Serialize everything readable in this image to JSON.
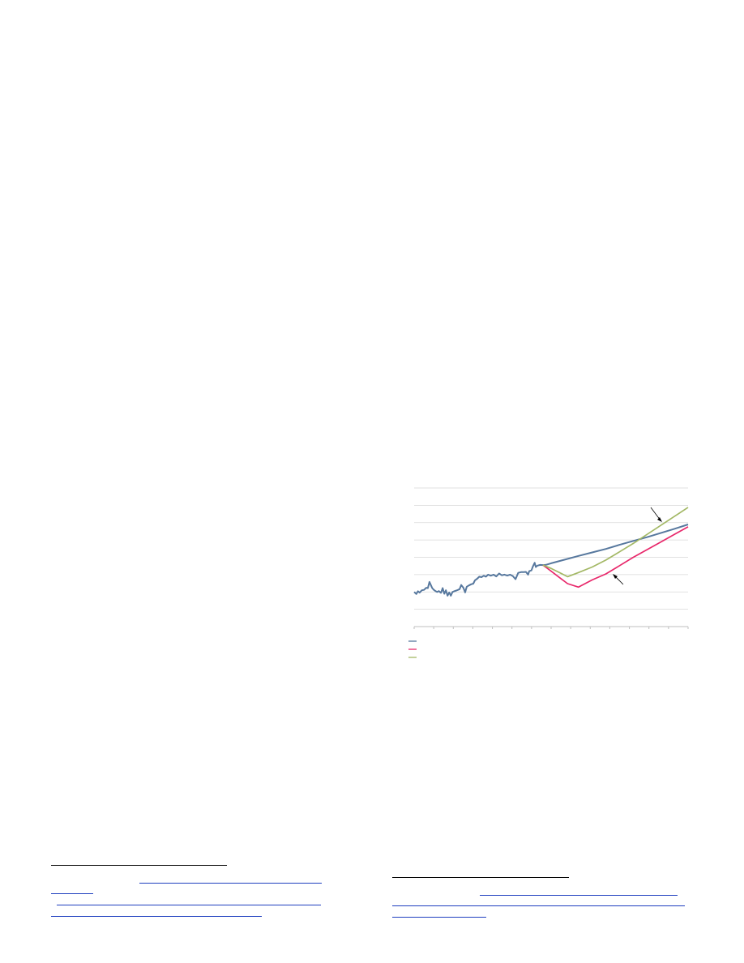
{
  "chart_data": {
    "type": "line",
    "title": "",
    "xlabel": "",
    "ylabel": "",
    "grid": true,
    "legend": "bottom-left",
    "x_tick_count": 14,
    "y_gridline_count": 8,
    "colors": {
      "actual": "#57789e",
      "drop": "#e8286b",
      "recovery": "#a3b865",
      "grid": "#d9d9d9",
      "axis": "#bfbfbf"
    },
    "series": [
      {
        "color": "#57789e",
        "points": [
          [
            0,
            0.25
          ],
          [
            0.008,
            0.235
          ],
          [
            0.014,
            0.255
          ],
          [
            0.02,
            0.245
          ],
          [
            0.028,
            0.262
          ],
          [
            0.036,
            0.265
          ],
          [
            0.044,
            0.28
          ],
          [
            0.05,
            0.278
          ],
          [
            0.056,
            0.322
          ],
          [
            0.061,
            0.3
          ],
          [
            0.066,
            0.278
          ],
          [
            0.072,
            0.265
          ],
          [
            0.078,
            0.256
          ],
          [
            0.084,
            0.25
          ],
          [
            0.09,
            0.256
          ],
          [
            0.098,
            0.244
          ],
          [
            0.104,
            0.278
          ],
          [
            0.11,
            0.237
          ],
          [
            0.116,
            0.262
          ],
          [
            0.122,
            0.223
          ],
          [
            0.128,
            0.246
          ],
          [
            0.134,
            0.223
          ],
          [
            0.14,
            0.25
          ],
          [
            0.148,
            0.256
          ],
          [
            0.154,
            0.26
          ],
          [
            0.16,
            0.265
          ],
          [
            0.166,
            0.27
          ],
          [
            0.172,
            0.3
          ],
          [
            0.18,
            0.28
          ],
          [
            0.186,
            0.247
          ],
          [
            0.192,
            0.288
          ],
          [
            0.2,
            0.297
          ],
          [
            0.208,
            0.305
          ],
          [
            0.216,
            0.31
          ],
          [
            0.222,
            0.334
          ],
          [
            0.23,
            0.345
          ],
          [
            0.238,
            0.36
          ],
          [
            0.246,
            0.357
          ],
          [
            0.254,
            0.367
          ],
          [
            0.262,
            0.36
          ],
          [
            0.27,
            0.375
          ],
          [
            0.28,
            0.367
          ],
          [
            0.29,
            0.375
          ],
          [
            0.3,
            0.362
          ],
          [
            0.31,
            0.383
          ],
          [
            0.32,
            0.37
          ],
          [
            0.33,
            0.375
          ],
          [
            0.34,
            0.368
          ],
          [
            0.35,
            0.375
          ],
          [
            0.36,
            0.365
          ],
          [
            0.37,
            0.342
          ],
          [
            0.38,
            0.388
          ],
          [
            0.39,
            0.393
          ],
          [
            0.4,
            0.393
          ],
          [
            0.408,
            0.395
          ],
          [
            0.416,
            0.375
          ],
          [
            0.42,
            0.4
          ],
          [
            0.428,
            0.405
          ],
          [
            0.434,
            0.436
          ],
          [
            0.44,
            0.46
          ],
          [
            0.444,
            0.43
          ],
          [
            0.45,
            0.44
          ],
          [
            0.46,
            0.445
          ],
          [
            0.47,
            0.444
          ],
          [
            0.48,
            0.445
          ],
          [
            0.5,
            0.457
          ],
          [
            0.55,
            0.483
          ],
          [
            0.6,
            0.51
          ],
          [
            0.65,
            0.535
          ],
          [
            0.7,
            0.56
          ],
          [
            0.75,
            0.59
          ],
          [
            0.8,
            0.618
          ],
          [
            0.85,
            0.645
          ],
          [
            0.9,
            0.675
          ],
          [
            0.95,
            0.705
          ],
          [
            1.0,
            0.737
          ]
        ]
      },
      {
        "color": "#e8286b",
        "points": [
          [
            0.47,
            0.444
          ],
          [
            0.5,
            0.4
          ],
          [
            0.53,
            0.355
          ],
          [
            0.56,
            0.31
          ],
          [
            0.6,
            0.285
          ],
          [
            0.65,
            0.337
          ],
          [
            0.7,
            0.38
          ],
          [
            0.75,
            0.44
          ],
          [
            0.8,
            0.5
          ],
          [
            0.85,
            0.555
          ],
          [
            0.9,
            0.61
          ],
          [
            0.95,
            0.665
          ],
          [
            1.0,
            0.72
          ]
        ]
      },
      {
        "color": "#a3b865",
        "points": [
          [
            0.47,
            0.444
          ],
          [
            0.5,
            0.42
          ],
          [
            0.53,
            0.39
          ],
          [
            0.56,
            0.36
          ],
          [
            0.6,
            0.39
          ],
          [
            0.65,
            0.43
          ],
          [
            0.7,
            0.48
          ],
          [
            0.75,
            0.54
          ],
          [
            0.8,
            0.6
          ],
          [
            0.85,
            0.665
          ],
          [
            0.9,
            0.73
          ],
          [
            0.95,
            0.795
          ],
          [
            1.0,
            0.86
          ]
        ]
      }
    ],
    "annotations": [
      {
        "target": "green-series",
        "arrow": "down-right",
        "text": ""
      },
      {
        "target": "pink-series",
        "arrow": "up-left",
        "text": ""
      }
    ]
  }
}
